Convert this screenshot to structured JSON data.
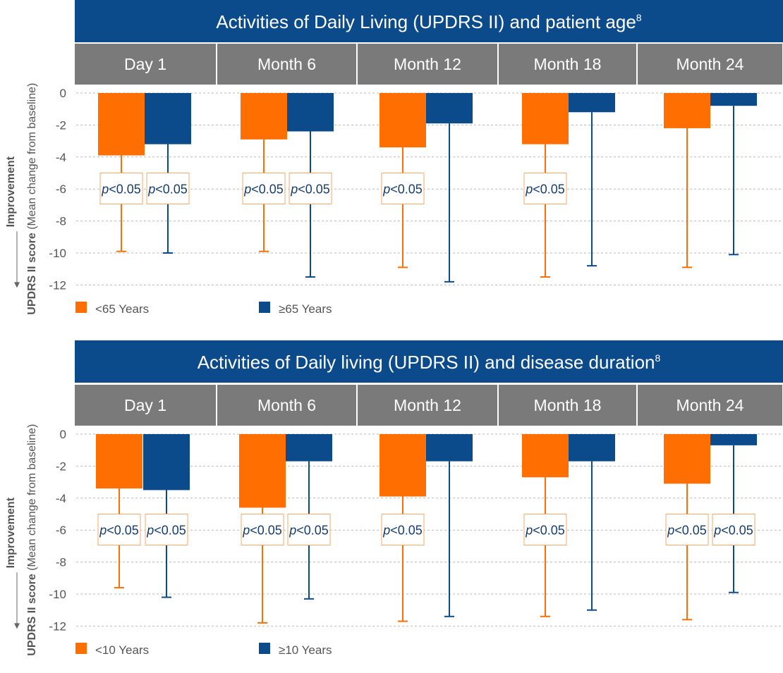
{
  "chart_data": [
    {
      "type": "bar",
      "title": "Activities of Daily Living (UPDRS II) and patient age",
      "title_sup": "8",
      "categories": [
        "Day 1",
        "Month 6",
        "Month 12",
        "Month 18",
        "Month 24"
      ],
      "ylabel_bold": "UPDRS II score",
      "ylabel_rest": " (Mean change from baseline)",
      "improvement_label": "Improvement",
      "yticks": [
        0,
        -2,
        -4,
        -6,
        -8,
        -10,
        -12
      ],
      "ylim": [
        -12,
        0
      ],
      "series": [
        {
          "name": "<65 Years",
          "color": "#ff6e00",
          "values": [
            -3.9,
            -2.9,
            -3.4,
            -3.2,
            -2.2
          ],
          "error_lower": [
            -9.9,
            -9.9,
            -10.9,
            -11.5,
            -10.9
          ],
          "pvalue": [
            "p<0.05",
            "p<0.05",
            "p<0.05",
            "p<0.05",
            ""
          ]
        },
        {
          "name": "≥65 Years",
          "color": "#0b4a8b",
          "values": [
            -3.2,
            -2.4,
            -1.9,
            -1.2,
            -0.8
          ],
          "error_lower": [
            -10.0,
            -11.5,
            -11.8,
            -10.8,
            -10.1
          ],
          "pvalue": [
            "p<0.05",
            "p<0.05",
            "",
            "",
            ""
          ]
        }
      ]
    },
    {
      "type": "bar",
      "title": "Activities of Daily living (UPDRS II) and disease duration",
      "title_sup": "8",
      "categories": [
        "Day 1",
        "Month 6",
        "Month 12",
        "Month 18",
        "Month 24"
      ],
      "ylabel_bold": "UPDRS II score",
      "ylabel_rest": " (Mean change from baseline)",
      "improvement_label": "Improvement",
      "yticks": [
        0,
        -2,
        -4,
        -6,
        -8,
        -10,
        -12
      ],
      "ylim": [
        -12,
        0
      ],
      "series": [
        {
          "name": "<10 Years",
          "color": "#ff6e00",
          "values": [
            -3.4,
            -4.6,
            -3.9,
            -2.7,
            -3.1
          ],
          "error_lower": [
            -9.6,
            -11.8,
            -11.7,
            -11.4,
            -11.6
          ],
          "pvalue": [
            "p<0.05",
            "p<0.05",
            "p<0.05",
            "p<0.05",
            "p<0.05"
          ]
        },
        {
          "name": "≥10 Years",
          "color": "#0b4a8b",
          "values": [
            -3.5,
            -1.7,
            -1.7,
            -1.7,
            -0.7
          ],
          "error_lower": [
            -10.2,
            -10.3,
            -11.4,
            -11.0,
            -9.9
          ],
          "pvalue": [
            "p<0.05",
            "p<0.05",
            "",
            "",
            "p<0.05"
          ]
        }
      ]
    }
  ]
}
